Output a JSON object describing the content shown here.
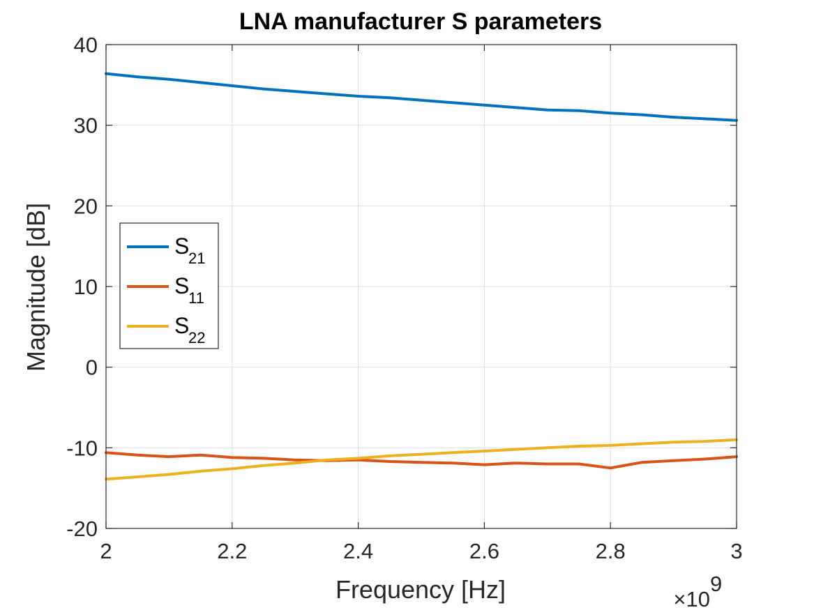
{
  "chart_data": {
    "type": "line",
    "title": "LNA manufacturer S parameters",
    "xlabel": "Frequency [Hz]",
    "ylabel": "Magnitude [dB]",
    "x_exponent_label": "×10",
    "x_exponent_power": "9",
    "xlim": [
      2,
      3
    ],
    "ylim": [
      -20,
      40
    ],
    "xticks": [
      2,
      2.2,
      2.4,
      2.6,
      2.8,
      3
    ],
    "xtick_labels": [
      "2",
      "2.2",
      "2.4",
      "2.6",
      "2.8",
      "3"
    ],
    "yticks": [
      -20,
      -10,
      0,
      10,
      20,
      30,
      40
    ],
    "ytick_labels": [
      "-20",
      "-10",
      "0",
      "10",
      "20",
      "30",
      "40"
    ],
    "grid": true,
    "legend_position": "left-middle",
    "x": [
      2.0,
      2.05,
      2.1,
      2.15,
      2.2,
      2.25,
      2.3,
      2.35,
      2.4,
      2.45,
      2.5,
      2.55,
      2.6,
      2.65,
      2.7,
      2.75,
      2.8,
      2.85,
      2.9,
      2.95,
      3.0
    ],
    "series": [
      {
        "name": "S",
        "sub": "21",
        "color": "#0072BD",
        "values": [
          36.4,
          36.0,
          35.7,
          35.3,
          34.9,
          34.5,
          34.2,
          33.9,
          33.6,
          33.4,
          33.1,
          32.8,
          32.5,
          32.2,
          31.9,
          31.8,
          31.5,
          31.3,
          31.0,
          30.8,
          30.6
        ]
      },
      {
        "name": "S",
        "sub": "11",
        "color": "#D95319",
        "values": [
          -10.6,
          -10.9,
          -11.1,
          -10.9,
          -11.2,
          -11.3,
          -11.5,
          -11.6,
          -11.5,
          -11.7,
          -11.8,
          -11.9,
          -12.1,
          -11.9,
          -12.0,
          -12.0,
          -12.5,
          -11.8,
          -11.6,
          -11.4,
          -11.1
        ]
      },
      {
        "name": "S",
        "sub": "22",
        "color": "#EDB120",
        "values": [
          -13.9,
          -13.6,
          -13.3,
          -12.9,
          -12.6,
          -12.2,
          -11.9,
          -11.5,
          -11.3,
          -11.0,
          -10.8,
          -10.6,
          -10.4,
          -10.2,
          -10.0,
          -9.8,
          -9.7,
          -9.5,
          -9.3,
          -9.2,
          -9.0
        ]
      }
    ]
  }
}
